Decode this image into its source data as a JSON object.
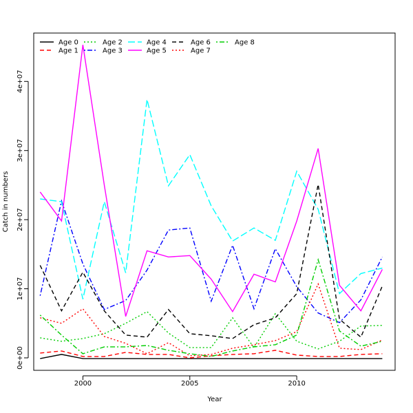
{
  "chart_data": {
    "type": "line",
    "title": "",
    "xlabel": "Year",
    "ylabel": "Catch in numbers",
    "xlim": [
      1997.7,
      2014.6
    ],
    "ylim": [
      -1800000,
      47000000
    ],
    "x_ticks": [
      2000,
      2005,
      2010
    ],
    "y_ticks": [
      0,
      10000000,
      20000000,
      30000000,
      40000000
    ],
    "y_tick_labels": [
      "0e+00",
      "1e+07",
      "2e+07",
      "3e+07",
      "4e+07"
    ],
    "grid": false,
    "legend_position": "top-left",
    "x": [
      1998,
      1999,
      2000,
      2001,
      2002,
      2003,
      2004,
      2005,
      2006,
      2007,
      2008,
      2009,
      2010,
      2011,
      2012,
      2013,
      2014
    ],
    "series": [
      {
        "name": "Age 0",
        "color": "#000000",
        "dash": "solid",
        "values": [
          -100000,
          500000,
          -100000,
          -100000,
          -100000,
          -100000,
          -100000,
          -100000,
          -100000,
          -100000,
          -100000,
          -100000,
          -100000,
          -100000,
          -100000,
          -100000,
          -100000
        ]
      },
      {
        "name": "Age 1",
        "color": "#ff0000",
        "dash": "dashed",
        "values": [
          700000,
          1000000,
          200000,
          200000,
          800000,
          500000,
          500000,
          0,
          300000,
          500000,
          600000,
          1100000,
          400000,
          200000,
          200000,
          500000,
          600000
        ]
      },
      {
        "name": "Age 2",
        "color": "#00cd00",
        "dash": "dotted",
        "values": [
          2900000,
          2400000,
          2800000,
          3500000,
          5000000,
          6700000,
          3600000,
          1500000,
          1500000,
          5800000,
          1500000,
          6400000,
          2400000,
          1300000,
          2400000,
          4600000,
          4700000
        ]
      },
      {
        "name": "Age 3",
        "color": "#0000ff",
        "dash": "dotdash",
        "values": [
          9000000,
          22700000,
          13600000,
          7000000,
          8300000,
          12700000,
          18500000,
          18800000,
          8200000,
          16300000,
          7100000,
          15800000,
          10300000,
          6500000,
          5100000,
          8400000,
          14600000
        ]
      },
      {
        "name": "Age 4",
        "color": "#00ffff",
        "dash": "longdash",
        "values": [
          23000000,
          22600000,
          8500000,
          22600000,
          12300000,
          37400000,
          24900000,
          29400000,
          22000000,
          16900000,
          18800000,
          17000000,
          27000000,
          21500000,
          9300000,
          12200000,
          13000000
        ]
      },
      {
        "name": "Age 5",
        "color": "#ff00ff",
        "dash": "solid",
        "values": [
          24000000,
          19800000,
          45300000,
          25000000,
          6000000,
          15500000,
          14600000,
          14800000,
          11400000,
          6700000,
          12100000,
          11000000,
          19800000,
          30300000,
          10500000,
          6800000,
          12800000
        ]
      },
      {
        "name": "Age 6",
        "color": "#000000",
        "dash": "dashed",
        "values": [
          13400000,
          6800000,
          12400000,
          6800000,
          3300000,
          3000000,
          7000000,
          3500000,
          3200000,
          2800000,
          4800000,
          5800000,
          9300000,
          25100000,
          5600000,
          3000000,
          10400000
        ]
      },
      {
        "name": "Age 7",
        "color": "#ff0000",
        "dash": "dotted",
        "values": [
          5800000,
          5000000,
          7100000,
          3100000,
          2100000,
          600000,
          2200000,
          300000,
          500000,
          1400000,
          1900000,
          2500000,
          3800000,
          10700000,
          1400000,
          1200000,
          2600000
        ]
      },
      {
        "name": "Age 8",
        "color": "#00cd00",
        "dash": "dotdash",
        "values": [
          6200000,
          3300000,
          600000,
          1600000,
          1600000,
          1800000,
          1100000,
          600000,
          200000,
          1000000,
          1600000,
          1900000,
          3300000,
          14200000,
          3900000,
          1700000,
          2400000
        ]
      }
    ]
  }
}
